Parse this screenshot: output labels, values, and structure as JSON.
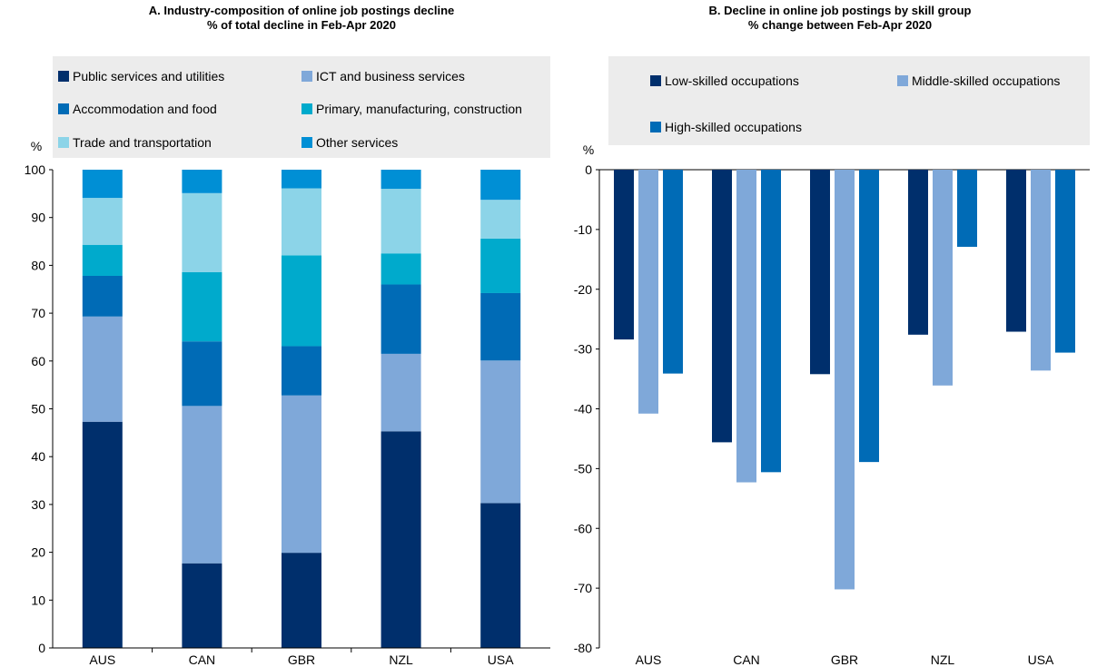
{
  "chart_data": [
    {
      "type": "bar",
      "stacked": true,
      "title": "A. Industry-composition of online job postings decline",
      "subtitle": "% of total decline in Feb-Apr 2020",
      "ylabel": "%",
      "ylim": [
        0,
        100
      ],
      "yticks": [
        0,
        10,
        20,
        30,
        40,
        50,
        60,
        70,
        80,
        90,
        100
      ],
      "categories": [
        "AUS",
        "CAN",
        "GBR",
        "NZL",
        "USA"
      ],
      "legend_position": "top",
      "series": [
        {
          "name": "Public services and utilities",
          "color": "#002F6C",
          "values": [
            47.3,
            17.7,
            19.9,
            45.3,
            30.3
          ]
        },
        {
          "name": "ICT and business services",
          "color": "#7FA8D9",
          "values": [
            22.0,
            32.9,
            32.9,
            16.2,
            29.8
          ]
        },
        {
          "name": "Accommodation and food",
          "color": "#006BB6",
          "values": [
            8.5,
            13.5,
            10.3,
            14.5,
            14.1
          ]
        },
        {
          "name": "Primary, manufacturing, construction",
          "color": "#00AACC",
          "values": [
            6.5,
            14.5,
            19.0,
            6.5,
            11.4
          ]
        },
        {
          "name": "Trade and transportation",
          "color": "#8CD4E8",
          "values": [
            9.8,
            16.5,
            14.0,
            13.5,
            8.1
          ]
        },
        {
          "name": "Other services",
          "color": "#008FD5",
          "values": [
            5.9,
            4.9,
            3.9,
            4.0,
            6.3
          ]
        }
      ]
    },
    {
      "type": "bar",
      "title": "B. Decline in online job postings by skill group",
      "subtitle": "% change between Feb-Apr 2020",
      "ylabel": "%",
      "ylim": [
        -80,
        0
      ],
      "yticks": [
        0,
        -10,
        -20,
        -30,
        -40,
        -50,
        -60,
        -70,
        -80
      ],
      "categories": [
        "AUS",
        "CAN",
        "GBR",
        "NZL",
        "USA"
      ],
      "legend_position": "top",
      "series": [
        {
          "name": "Low-skilled occupations",
          "color": "#002F6C",
          "values": [
            -28.4,
            -45.6,
            -34.2,
            -27.6,
            -27.1
          ]
        },
        {
          "name": "Middle-skilled occupations",
          "color": "#7FA8D9",
          "values": [
            -40.8,
            -52.3,
            -70.2,
            -36.1,
            -33.6
          ]
        },
        {
          "name": "High-skilled occupations",
          "color": "#006BB6",
          "values": [
            -34.1,
            -50.6,
            -48.9,
            -12.9,
            -30.6
          ]
        }
      ]
    }
  ]
}
